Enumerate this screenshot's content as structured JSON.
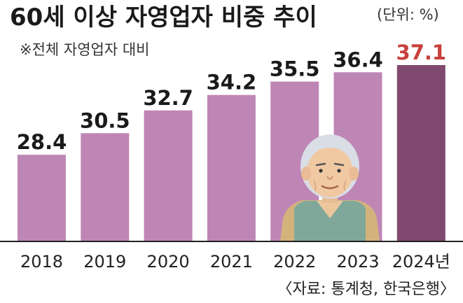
{
  "chart_data": {
    "type": "bar",
    "title": "60세 이상 자영업자 비중 추이",
    "unit": "(단위: %)",
    "subtitle": "※전체 자영업자 대비",
    "categories": [
      "2018",
      "2019",
      "2020",
      "2021",
      "2022",
      "2023",
      "2024년"
    ],
    "values": [
      28.4,
      30.5,
      32.7,
      34.2,
      35.5,
      36.4,
      37.1
    ],
    "value_labels": [
      "28.4",
      "30.5",
      "32.7",
      "34.2",
      "35.5",
      "36.4",
      "37.1"
    ],
    "ylim": [
      20,
      40
    ],
    "grid": false,
    "highlight_index": 6,
    "source": "〈자료: 통계청, 한국은행〉"
  },
  "colors": {
    "bar": "#be86b5",
    "bar_highlight": "#80496f",
    "highlight_label": "#c8403c",
    "axis": "#222222"
  },
  "illustration": "elderly-man-icon"
}
